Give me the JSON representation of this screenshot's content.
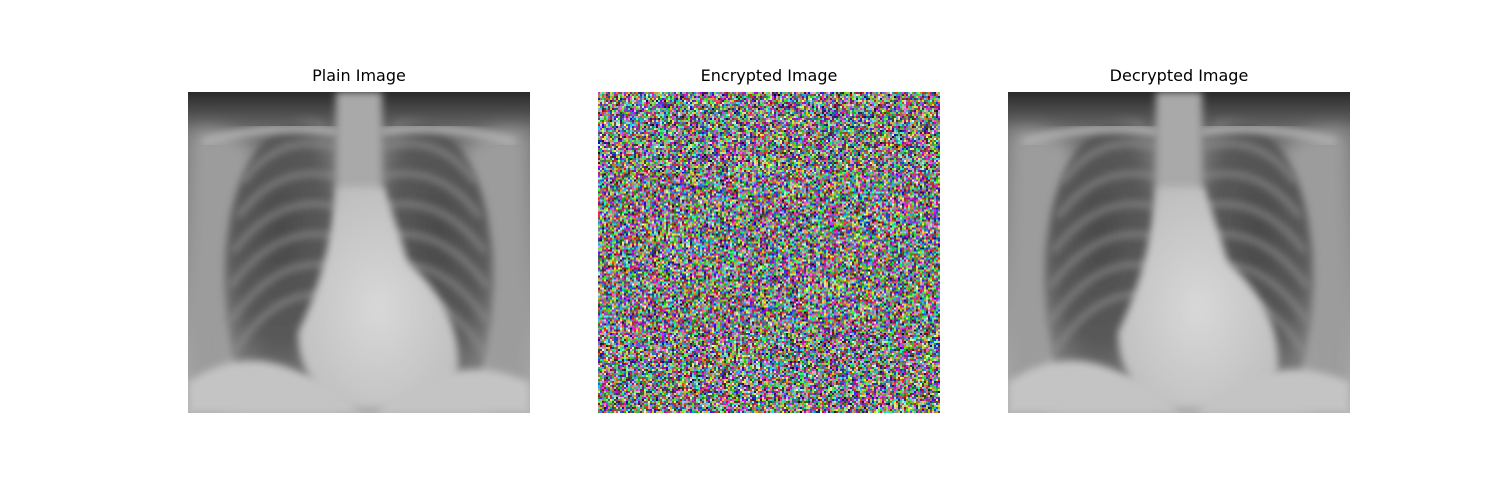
{
  "panels": [
    {
      "title": "Plain Image",
      "content": "chest-xray"
    },
    {
      "title": "Encrypted Image",
      "content": "noise"
    },
    {
      "title": "Decrypted Image",
      "content": "chest-xray"
    }
  ]
}
